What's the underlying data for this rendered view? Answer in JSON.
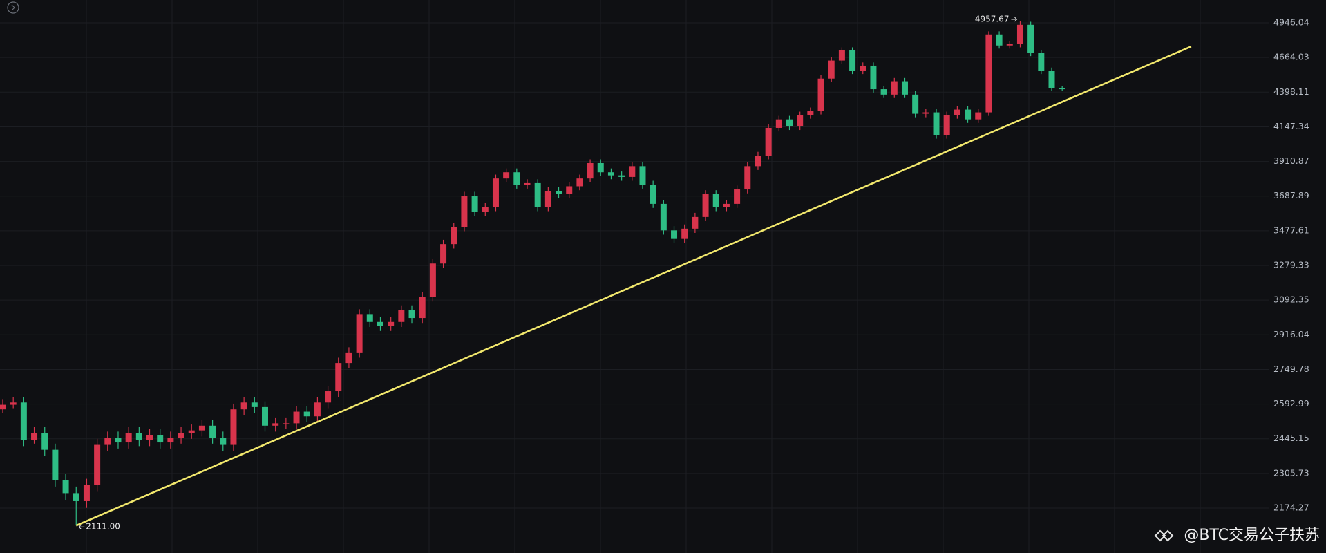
{
  "chart_data": {
    "type": "candlestick",
    "ylim": [
      2015,
      5141
    ],
    "log_scale": true,
    "grid": true,
    "yticks": [
      4946.04,
      4664.03,
      4398.11,
      4147.34,
      3910.87,
      3687.89,
      3477.61,
      3279.33,
      3092.35,
      2916.04,
      2749.78,
      2592.99,
      2445.15,
      2305.73,
      2174.27
    ],
    "up_color": "#d8344c",
    "down_color": "#2ebd85",
    "open": [
      2570,
      2590,
      2600,
      2440,
      2470,
      2400,
      2280,
      2230,
      2200,
      2260,
      2420,
      2450,
      2430,
      2470,
      2440,
      2460,
      2430,
      2450,
      2470,
      2480,
      2500,
      2450,
      2420,
      2570,
      2600,
      2580,
      2500,
      2510,
      2510,
      2560,
      2540,
      2600,
      2650,
      2780,
      2830,
      3020,
      2980,
      2960,
      2980,
      3040,
      3000,
      3110,
      3290,
      3400,
      3500,
      3690,
      3590,
      3620,
      3800,
      3840,
      3760,
      3770,
      3620,
      3720,
      3700,
      3750,
      3800,
      3900,
      3840,
      3820,
      3810,
      3880,
      3760,
      3640,
      3480,
      3430,
      3490,
      3560,
      3700,
      3620,
      3640,
      3730,
      3880,
      3950,
      4140,
      4200,
      4150,
      4230,
      4260,
      4500,
      4640,
      4720,
      4560,
      4600,
      4420,
      4380,
      4480,
      4380,
      4240,
      4250,
      4090,
      4230,
      4270,
      4200,
      4250,
      4850,
      4760,
      4770,
      4930,
      4700,
      4560,
      4430
    ],
    "high": [
      2615,
      2625,
      2625,
      2495,
      2495,
      2425,
      2305,
      2255,
      2285,
      2445,
      2475,
      2475,
      2495,
      2495,
      2485,
      2485,
      2475,
      2495,
      2505,
      2525,
      2525,
      2475,
      2595,
      2625,
      2625,
      2605,
      2535,
      2535,
      2585,
      2585,
      2625,
      2675,
      2805,
      2855,
      3045,
      3045,
      3005,
      3005,
      3065,
      3065,
      3135,
      3315,
      3425,
      3525,
      3715,
      3715,
      3645,
      3825,
      3865,
      3865,
      3795,
      3795,
      3745,
      3745,
      3775,
      3825,
      3925,
      3925,
      3865,
      3845,
      3905,
      3905,
      3785,
      3665,
      3505,
      3515,
      3585,
      3725,
      3725,
      3665,
      3755,
      3905,
      3975,
      4165,
      4225,
      4225,
      4255,
      4285,
      4525,
      4665,
      4745,
      4745,
      4625,
      4625,
      4445,
      4505,
      4505,
      4405,
      4275,
      4275,
      4255,
      4295,
      4295,
      4275,
      4875,
      4875,
      4795,
      4957.67,
      4955,
      4725,
      4585,
      4445
    ],
    "low": [
      2555,
      2575,
      2415,
      2425,
      2375,
      2255,
      2205,
      2111,
      2175,
      2235,
      2395,
      2405,
      2405,
      2415,
      2415,
      2405,
      2405,
      2425,
      2445,
      2455,
      2425,
      2395,
      2395,
      2545,
      2555,
      2475,
      2475,
      2485,
      2485,
      2515,
      2515,
      2575,
      2625,
      2755,
      2805,
      2955,
      2935,
      2935,
      2955,
      2975,
      2975,
      3085,
      3265,
      3375,
      3475,
      3565,
      3565,
      3595,
      3775,
      3735,
      3735,
      3595,
      3595,
      3675,
      3675,
      3725,
      3775,
      3815,
      3795,
      3785,
      3785,
      3735,
      3615,
      3455,
      3405,
      3405,
      3465,
      3535,
      3595,
      3595,
      3615,
      3705,
      3855,
      3925,
      4115,
      4125,
      4125,
      4205,
      4235,
      4475,
      4615,
      4535,
      4535,
      4395,
      4355,
      4355,
      4355,
      4215,
      4215,
      4065,
      4065,
      4205,
      4175,
      4175,
      4225,
      4735,
      4735,
      4745,
      4675,
      4535,
      4405,
      4405
    ],
    "close": [
      2590,
      2600,
      2440,
      2470,
      2400,
      2280,
      2230,
      2200,
      2260,
      2420,
      2450,
      2430,
      2470,
      2440,
      2460,
      2430,
      2450,
      2470,
      2480,
      2500,
      2450,
      2420,
      2570,
      2600,
      2580,
      2500,
      2510,
      2510,
      2560,
      2540,
      2600,
      2650,
      2780,
      2830,
      3020,
      2980,
      2960,
      2980,
      3040,
      3000,
      3110,
      3290,
      3400,
      3500,
      3690,
      3590,
      3620,
      3800,
      3840,
      3760,
      3770,
      3620,
      3720,
      3700,
      3750,
      3800,
      3900,
      3840,
      3820,
      3810,
      3880,
      3760,
      3640,
      3480,
      3430,
      3490,
      3560,
      3700,
      3620,
      3640,
      3730,
      3880,
      3950,
      4140,
      4200,
      4150,
      4230,
      4260,
      4500,
      4640,
      4720,
      4560,
      4600,
      4420,
      4380,
      4480,
      4380,
      4240,
      4250,
      4090,
      4230,
      4270,
      4200,
      4250,
      4850,
      4760,
      4770,
      4930,
      4700,
      4560,
      4430,
      4420
    ],
    "annotations": [
      {
        "value": 4957.67,
        "label": "4957.67"
      },
      {
        "value": 2111,
        "label": "2111.00"
      }
    ],
    "trendline": {
      "color": "#f2e86d",
      "x": [
        7,
        113.3
      ],
      "y": [
        2111,
        4752
      ]
    },
    "watermark": "@BTC交易公子扶苏"
  }
}
